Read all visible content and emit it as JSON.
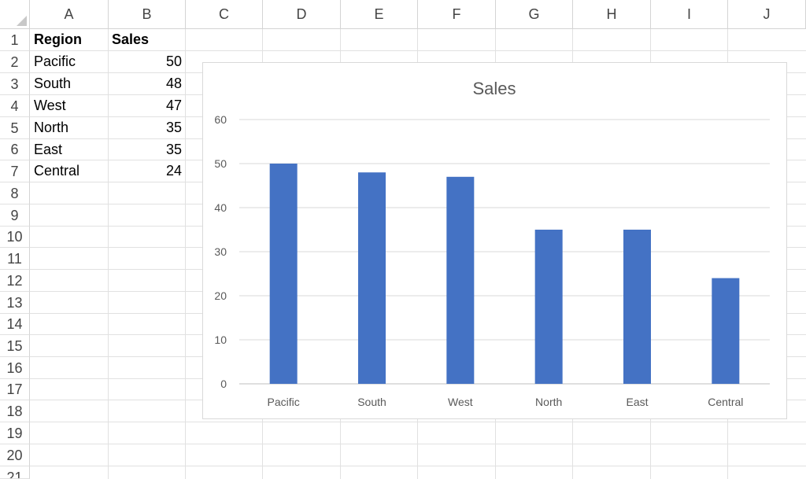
{
  "columns": [
    "A",
    "B",
    "C",
    "D",
    "E",
    "F",
    "G",
    "H",
    "I",
    "J"
  ],
  "rows": [
    "1",
    "2",
    "3",
    "4",
    "5",
    "6",
    "7",
    "8",
    "9",
    "10",
    "11",
    "12",
    "13",
    "14",
    "15",
    "16",
    "17",
    "18",
    "19",
    "20",
    "21"
  ],
  "table": {
    "header": {
      "region": "Region",
      "sales": "Sales"
    },
    "rows": [
      {
        "region": "Pacific",
        "sales": "50"
      },
      {
        "region": "South",
        "sales": "48"
      },
      {
        "region": "West",
        "sales": "47"
      },
      {
        "region": "North",
        "sales": "35"
      },
      {
        "region": "East",
        "sales": "35"
      },
      {
        "region": "Central",
        "sales": "24"
      }
    ]
  },
  "chart_data": {
    "type": "bar",
    "title": "Sales",
    "categories": [
      "Pacific",
      "South",
      "West",
      "North",
      "East",
      "Central"
    ],
    "values": [
      50,
      48,
      47,
      35,
      35,
      24
    ],
    "ylim": [
      0,
      60
    ],
    "yticks": [
      "0",
      "10",
      "20",
      "30",
      "40",
      "50",
      "60"
    ],
    "xlabel": "",
    "ylabel": "",
    "grid": true,
    "legend": "none",
    "bar_color": "#4472C4"
  }
}
